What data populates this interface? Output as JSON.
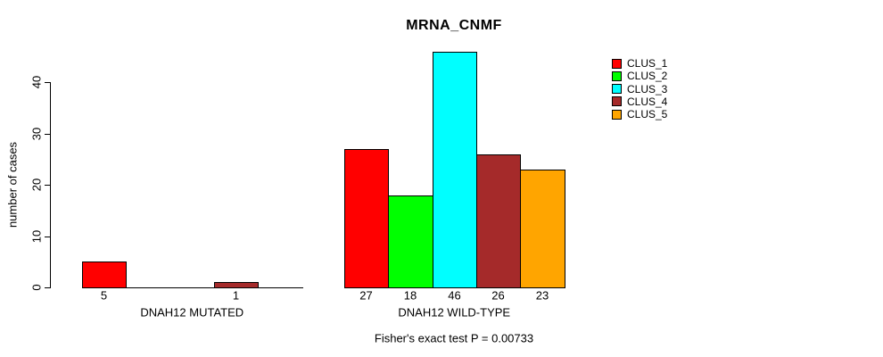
{
  "chart_data": {
    "type": "bar",
    "title": "MRNA_CNMF",
    "ylabel": "number of cases",
    "xlabel": "",
    "categories": [
      "DNAH12 MUTATED",
      "DNAH12 WILD-TYPE"
    ],
    "series": [
      {
        "name": "CLUS_1",
        "color": "#FF0000",
        "values": [
          5,
          27
        ]
      },
      {
        "name": "CLUS_2",
        "color": "#00FF00",
        "values": [
          0,
          18
        ]
      },
      {
        "name": "CLUS_3",
        "color": "#00FFFF",
        "values": [
          0,
          46
        ]
      },
      {
        "name": "CLUS_4",
        "color": "#A52A2A",
        "values": [
          1,
          26
        ]
      },
      {
        "name": "CLUS_5",
        "color": "#FFA500",
        "values": [
          0,
          23
        ]
      }
    ],
    "yticks": [
      0,
      10,
      20,
      30,
      40
    ],
    "ylim": [
      0,
      46
    ],
    "grid": false,
    "legend_position": "top-right",
    "bar_value_labels_shown_for_nonzero": true,
    "annotation": "Fisher's exact test P = 0.00733",
    "axis_color": "#000000",
    "bar_border_color": "#000000"
  }
}
